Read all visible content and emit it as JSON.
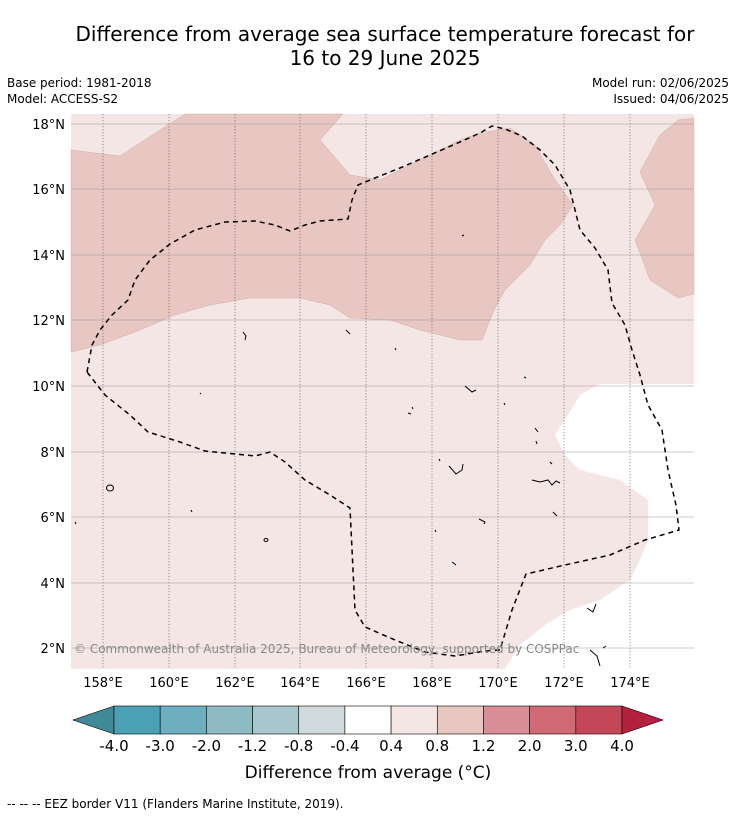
{
  "title_line1": "Difference from average sea surface temperature forecast for",
  "title_line2": "16 to 29 June 2025",
  "base_period": "Base period: 1981-2018",
  "model": "Model: ACCESS-S2",
  "model_run": "Model run: 02/06/2025",
  "issued": "Issued: 04/06/2025",
  "latitude_labels": [
    "18°N",
    "16°N",
    "14°N",
    "12°N",
    "10°N",
    "8°N",
    "6°N",
    "4°N",
    "2°N"
  ],
  "longitude_labels": [
    "158°E",
    "160°E",
    "162°E",
    "164°E",
    "166°E",
    "168°E",
    "170°E",
    "172°E",
    "174°E"
  ],
  "copyright": "© Commonwealth of Australia 2025, Bureau of Meteorology, supported by COSPPac",
  "colorbar": {
    "tick_labels": [
      "-4.0",
      "-3.0",
      "-2.0",
      "-1.2",
      "-0.8",
      "-0.4",
      "0.4",
      "0.8",
      "1.2",
      "2.0",
      "3.0",
      "4.0"
    ],
    "colors": [
      "#4aa1b4",
      "#6daebf",
      "#8ebac4",
      "#a8c6cb",
      "#d0dadc",
      "#ffffff",
      "#f4e6e5",
      "#e8c6c2",
      "#d98f98",
      "#cf6a75",
      "#c34756"
    ],
    "under_color": "#3f8a96",
    "over_color": "#b5203e",
    "title": "Difference from average (°C)"
  },
  "footnote": "--  --  -- EEZ border V11 (Flanders Marine Institute, 2019).",
  "map_fill_colors": {
    "band_0.4_0.8": "#f4e6e5",
    "band_0.8_1.2": "#e8c6c2",
    "band_neutral": "#ffffff"
  }
}
